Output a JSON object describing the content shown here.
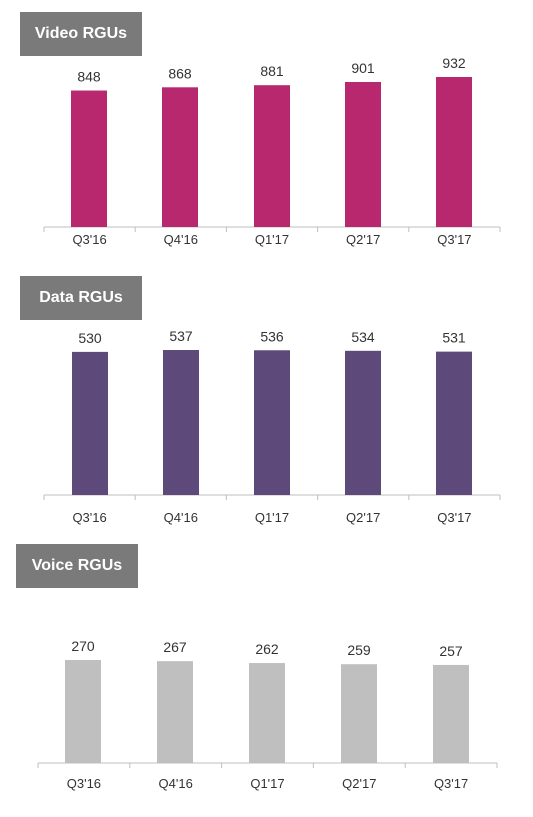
{
  "charts": [
    {
      "title": "Video RGUs",
      "color": "#b8286e",
      "chart_data": {
        "type": "bar",
        "title": "Video RGUs",
        "categories": [
          "Q3'16",
          "Q4'16",
          "Q1'17",
          "Q2'17",
          "Q3'17"
        ],
        "values": [
          848,
          868,
          881,
          901,
          932
        ],
        "data_labels": [
          "848",
          "868",
          "881",
          "901",
          "932"
        ],
        "grid": false,
        "legend": "none"
      }
    },
    {
      "title": "Data RGUs",
      "color": "#5d4a7a",
      "chart_data": {
        "type": "bar",
        "title": "Data RGUs",
        "categories": [
          "Q3'16",
          "Q4'16",
          "Q1'17",
          "Q2'17",
          "Q3'17"
        ],
        "values": [
          530,
          537,
          536,
          534,
          531
        ],
        "data_labels": [
          "530",
          "537",
          "536",
          "534",
          "531"
        ],
        "grid": false,
        "legend": "none"
      }
    },
    {
      "title": "Voice RGUs",
      "color": "#bfbfbf",
      "chart_data": {
        "type": "bar",
        "title": "Voice RGUs",
        "categories": [
          "Q3'16",
          "Q4'16",
          "Q1'17",
          "Q2'17",
          "Q3'17"
        ],
        "values": [
          270,
          267,
          262,
          259,
          257
        ],
        "data_labels": [
          "270",
          "267",
          "262",
          "259",
          "257"
        ],
        "grid": false,
        "legend": "none"
      }
    }
  ]
}
